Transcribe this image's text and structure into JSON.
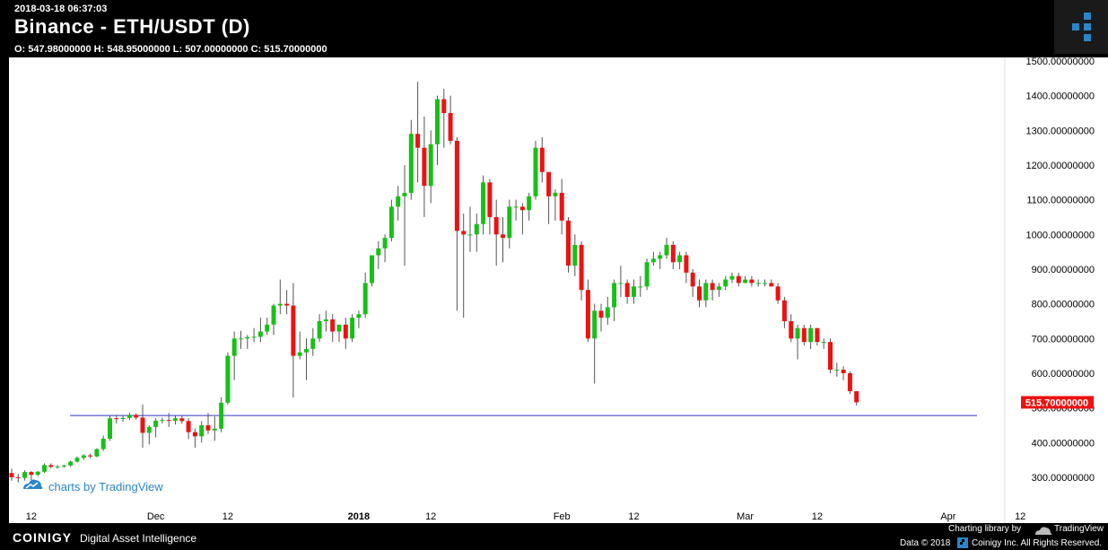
{
  "header": {
    "timestamp": "2018-03-18 06:37:03",
    "title": "Binance - ETH/USDT (D)",
    "ohlc": "O: 547.98000000 H: 548.95000000 L: 507.00000000 C: 515.70000000"
  },
  "colors": {
    "up": "#17c017",
    "down": "#ee1111",
    "hline": "#3333cc",
    "watermark": "#2a86c9"
  },
  "watermark": "charts by TradingView",
  "footer": {
    "brand": "COINIGY",
    "tagline": "Digital Asset Intelligence",
    "library_credit": "Charting library by",
    "library_name": "TradingView",
    "data_credit": "Data © 2018",
    "data_credit2": "Coinigy Inc. All Rights Reserved."
  },
  "chart_data": {
    "type": "candlestick",
    "price_axis": [
      "1500.00000000",
      "1400.00000000",
      "1300.00000000",
      "1200.00000000",
      "1100.00000000",
      "1000.00000000",
      "900.00000000",
      "800.00000000",
      "700.00000000",
      "600.00000000",
      "500.00000000",
      "400.00000000",
      "300.00000000"
    ],
    "time_axis": [
      {
        "label": "12",
        "date": "2017-11-12",
        "bold": false
      },
      {
        "label": "Dec",
        "date": "2017-12-01",
        "bold": false
      },
      {
        "label": "12",
        "date": "2017-12-12",
        "bold": false
      },
      {
        "label": "2018",
        "date": "2018-01-01",
        "bold": true
      },
      {
        "label": "12",
        "date": "2018-01-12",
        "bold": false
      },
      {
        "label": "Feb",
        "date": "2018-02-01",
        "bold": false
      },
      {
        "label": "12",
        "date": "2018-02-12",
        "bold": false
      },
      {
        "label": "Mar",
        "date": "2018-03-01",
        "bold": false
      },
      {
        "label": "12",
        "date": "2018-03-12",
        "bold": false
      },
      {
        "label": "Apr",
        "date": "2018-04-01",
        "bold": false
      },
      {
        "label": "12",
        "date": "2018-04-12",
        "bold": false
      }
    ],
    "last_price_label": "515.70000000",
    "horizontal_line": 478,
    "candles": [
      {
        "date": "2017-11-09",
        "o": 312,
        "h": 325,
        "l": 290,
        "c": 300
      },
      {
        "date": "2017-11-10",
        "o": 300,
        "h": 310,
        "l": 285,
        "c": 298
      },
      {
        "date": "2017-11-11",
        "o": 298,
        "h": 320,
        "l": 290,
        "c": 315
      },
      {
        "date": "2017-11-12",
        "o": 315,
        "h": 318,
        "l": 292,
        "c": 307
      },
      {
        "date": "2017-11-13",
        "o": 307,
        "h": 318,
        "l": 303,
        "c": 316
      },
      {
        "date": "2017-11-14",
        "o": 316,
        "h": 340,
        "l": 312,
        "c": 335
      },
      {
        "date": "2017-11-15",
        "o": 335,
        "h": 340,
        "l": 326,
        "c": 330
      },
      {
        "date": "2017-11-16",
        "o": 330,
        "h": 335,
        "l": 325,
        "c": 331
      },
      {
        "date": "2017-11-17",
        "o": 331,
        "h": 336,
        "l": 328,
        "c": 334
      },
      {
        "date": "2017-11-18",
        "o": 334,
        "h": 348,
        "l": 330,
        "c": 345
      },
      {
        "date": "2017-11-19",
        "o": 345,
        "h": 360,
        "l": 342,
        "c": 356
      },
      {
        "date": "2017-11-20",
        "o": 356,
        "h": 366,
        "l": 350,
        "c": 363
      },
      {
        "date": "2017-11-21",
        "o": 363,
        "h": 368,
        "l": 355,
        "c": 360
      },
      {
        "date": "2017-11-22",
        "o": 360,
        "h": 384,
        "l": 358,
        "c": 381
      },
      {
        "date": "2017-11-23",
        "o": 381,
        "h": 420,
        "l": 376,
        "c": 411
      },
      {
        "date": "2017-11-24",
        "o": 411,
        "h": 478,
        "l": 405,
        "c": 470
      },
      {
        "date": "2017-11-25",
        "o": 470,
        "h": 480,
        "l": 455,
        "c": 468
      },
      {
        "date": "2017-11-26",
        "o": 468,
        "h": 478,
        "l": 460,
        "c": 471
      },
      {
        "date": "2017-11-27",
        "o": 471,
        "h": 486,
        "l": 465,
        "c": 480
      },
      {
        "date": "2017-11-28",
        "o": 480,
        "h": 484,
        "l": 466,
        "c": 472
      },
      {
        "date": "2017-11-29",
        "o": 472,
        "h": 510,
        "l": 385,
        "c": 428
      },
      {
        "date": "2017-11-30",
        "o": 428,
        "h": 450,
        "l": 395,
        "c": 445
      },
      {
        "date": "2017-12-01",
        "o": 445,
        "h": 470,
        "l": 415,
        "c": 463
      },
      {
        "date": "2017-12-02",
        "o": 463,
        "h": 472,
        "l": 455,
        "c": 465
      },
      {
        "date": "2017-12-03",
        "o": 465,
        "h": 485,
        "l": 445,
        "c": 463
      },
      {
        "date": "2017-12-04",
        "o": 463,
        "h": 478,
        "l": 452,
        "c": 470
      },
      {
        "date": "2017-12-05",
        "o": 470,
        "h": 478,
        "l": 455,
        "c": 462
      },
      {
        "date": "2017-12-06",
        "o": 462,
        "h": 470,
        "l": 410,
        "c": 430
      },
      {
        "date": "2017-12-07",
        "o": 430,
        "h": 440,
        "l": 385,
        "c": 418
      },
      {
        "date": "2017-12-08",
        "o": 418,
        "h": 462,
        "l": 400,
        "c": 450
      },
      {
        "date": "2017-12-09",
        "o": 450,
        "h": 485,
        "l": 425,
        "c": 435
      },
      {
        "date": "2017-12-10",
        "o": 435,
        "h": 475,
        "l": 405,
        "c": 440
      },
      {
        "date": "2017-12-11",
        "o": 440,
        "h": 530,
        "l": 430,
        "c": 515
      },
      {
        "date": "2017-12-12",
        "o": 515,
        "h": 660,
        "l": 510,
        "c": 650
      },
      {
        "date": "2017-12-13",
        "o": 650,
        "h": 720,
        "l": 580,
        "c": 700
      },
      {
        "date": "2017-12-14",
        "o": 700,
        "h": 722,
        "l": 670,
        "c": 700
      },
      {
        "date": "2017-12-15",
        "o": 700,
        "h": 710,
        "l": 670,
        "c": 704
      },
      {
        "date": "2017-12-16",
        "o": 704,
        "h": 730,
        "l": 690,
        "c": 705
      },
      {
        "date": "2017-12-17",
        "o": 705,
        "h": 760,
        "l": 690,
        "c": 720
      },
      {
        "date": "2017-12-18",
        "o": 720,
        "h": 760,
        "l": 710,
        "c": 740
      },
      {
        "date": "2017-12-19",
        "o": 740,
        "h": 800,
        "l": 710,
        "c": 795
      },
      {
        "date": "2017-12-20",
        "o": 795,
        "h": 870,
        "l": 770,
        "c": 800
      },
      {
        "date": "2017-12-21",
        "o": 800,
        "h": 840,
        "l": 770,
        "c": 795
      },
      {
        "date": "2017-12-22",
        "o": 795,
        "h": 860,
        "l": 530,
        "c": 650
      },
      {
        "date": "2017-12-23",
        "o": 650,
        "h": 720,
        "l": 640,
        "c": 660
      },
      {
        "date": "2017-12-24",
        "o": 660,
        "h": 700,
        "l": 580,
        "c": 670
      },
      {
        "date": "2017-12-25",
        "o": 670,
        "h": 730,
        "l": 650,
        "c": 700
      },
      {
        "date": "2017-12-26",
        "o": 700,
        "h": 770,
        "l": 690,
        "c": 750
      },
      {
        "date": "2017-12-27",
        "o": 750,
        "h": 780,
        "l": 720,
        "c": 755
      },
      {
        "date": "2017-12-28",
        "o": 755,
        "h": 770,
        "l": 690,
        "c": 720
      },
      {
        "date": "2017-12-29",
        "o": 720,
        "h": 740,
        "l": 690,
        "c": 740
      },
      {
        "date": "2017-12-30",
        "o": 740,
        "h": 760,
        "l": 670,
        "c": 700
      },
      {
        "date": "2017-12-31",
        "o": 700,
        "h": 770,
        "l": 690,
        "c": 760
      },
      {
        "date": "2018-01-01",
        "o": 760,
        "h": 780,
        "l": 730,
        "c": 770
      },
      {
        "date": "2018-01-02",
        "o": 770,
        "h": 890,
        "l": 760,
        "c": 860
      },
      {
        "date": "2018-01-03",
        "o": 860,
        "h": 940,
        "l": 850,
        "c": 940
      },
      {
        "date": "2018-01-04",
        "o": 940,
        "h": 980,
        "l": 900,
        "c": 960
      },
      {
        "date": "2018-01-05",
        "o": 960,
        "h": 1000,
        "l": 920,
        "c": 990
      },
      {
        "date": "2018-01-06",
        "o": 990,
        "h": 1100,
        "l": 980,
        "c": 1080
      },
      {
        "date": "2018-01-07",
        "o": 1080,
        "h": 1140,
        "l": 1040,
        "c": 1110
      },
      {
        "date": "2018-01-08",
        "o": 1110,
        "h": 1200,
        "l": 910,
        "c": 1120
      },
      {
        "date": "2018-01-09",
        "o": 1120,
        "h": 1330,
        "l": 1100,
        "c": 1290
      },
      {
        "date": "2018-01-10",
        "o": 1290,
        "h": 1440,
        "l": 1150,
        "c": 1250
      },
      {
        "date": "2018-01-11",
        "o": 1250,
        "h": 1340,
        "l": 1050,
        "c": 1140
      },
      {
        "date": "2018-01-12",
        "o": 1140,
        "h": 1300,
        "l": 1090,
        "c": 1260
      },
      {
        "date": "2018-01-13",
        "o": 1260,
        "h": 1400,
        "l": 1200,
        "c": 1390
      },
      {
        "date": "2018-01-14",
        "o": 1390,
        "h": 1420,
        "l": 1250,
        "c": 1350
      },
      {
        "date": "2018-01-15",
        "o": 1350,
        "h": 1400,
        "l": 1260,
        "c": 1270
      },
      {
        "date": "2018-01-16",
        "o": 1270,
        "h": 1280,
        "l": 780,
        "c": 1010
      },
      {
        "date": "2018-01-17",
        "o": 1010,
        "h": 1060,
        "l": 760,
        "c": 1000
      },
      {
        "date": "2018-01-18",
        "o": 1000,
        "h": 1080,
        "l": 950,
        "c": 1000
      },
      {
        "date": "2018-01-19",
        "o": 1000,
        "h": 1060,
        "l": 950,
        "c": 1030
      },
      {
        "date": "2018-01-20",
        "o": 1030,
        "h": 1170,
        "l": 1000,
        "c": 1150
      },
      {
        "date": "2018-01-21",
        "o": 1150,
        "h": 1160,
        "l": 1000,
        "c": 1050
      },
      {
        "date": "2018-01-22",
        "o": 1050,
        "h": 1100,
        "l": 910,
        "c": 1000
      },
      {
        "date": "2018-01-23",
        "o": 1000,
        "h": 1050,
        "l": 920,
        "c": 990
      },
      {
        "date": "2018-01-24",
        "o": 990,
        "h": 1100,
        "l": 960,
        "c": 1080
      },
      {
        "date": "2018-01-25",
        "o": 1080,
        "h": 1100,
        "l": 1040,
        "c": 1080
      },
      {
        "date": "2018-01-26",
        "o": 1080,
        "h": 1090,
        "l": 1000,
        "c": 1070
      },
      {
        "date": "2018-01-27",
        "o": 1070,
        "h": 1120,
        "l": 1040,
        "c": 1110
      },
      {
        "date": "2018-01-28",
        "o": 1110,
        "h": 1270,
        "l": 1100,
        "c": 1250
      },
      {
        "date": "2018-01-29",
        "o": 1250,
        "h": 1280,
        "l": 1150,
        "c": 1180
      },
      {
        "date": "2018-01-30",
        "o": 1180,
        "h": 1180,
        "l": 1030,
        "c": 1110
      },
      {
        "date": "2018-01-31",
        "o": 1110,
        "h": 1130,
        "l": 1040,
        "c": 1120
      },
      {
        "date": "2018-02-01",
        "o": 1120,
        "h": 1160,
        "l": 1000,
        "c": 1040
      },
      {
        "date": "2018-02-02",
        "o": 1040,
        "h": 1050,
        "l": 890,
        "c": 910
      },
      {
        "date": "2018-02-03",
        "o": 910,
        "h": 1000,
        "l": 880,
        "c": 970
      },
      {
        "date": "2018-02-04",
        "o": 970,
        "h": 980,
        "l": 810,
        "c": 840
      },
      {
        "date": "2018-02-05",
        "o": 840,
        "h": 870,
        "l": 690,
        "c": 700
      },
      {
        "date": "2018-02-06",
        "o": 700,
        "h": 800,
        "l": 570,
        "c": 780
      },
      {
        "date": "2018-02-07",
        "o": 780,
        "h": 800,
        "l": 720,
        "c": 760
      },
      {
        "date": "2018-02-08",
        "o": 760,
        "h": 820,
        "l": 740,
        "c": 790
      },
      {
        "date": "2018-02-09",
        "o": 790,
        "h": 870,
        "l": 750,
        "c": 860
      },
      {
        "date": "2018-02-10",
        "o": 860,
        "h": 910,
        "l": 820,
        "c": 860
      },
      {
        "date": "2018-02-11",
        "o": 860,
        "h": 870,
        "l": 800,
        "c": 820
      },
      {
        "date": "2018-02-12",
        "o": 820,
        "h": 870,
        "l": 800,
        "c": 850
      },
      {
        "date": "2018-02-13",
        "o": 850,
        "h": 880,
        "l": 820,
        "c": 850
      },
      {
        "date": "2018-02-14",
        "o": 850,
        "h": 930,
        "l": 840,
        "c": 920
      },
      {
        "date": "2018-02-15",
        "o": 920,
        "h": 950,
        "l": 910,
        "c": 930
      },
      {
        "date": "2018-02-16",
        "o": 930,
        "h": 950,
        "l": 900,
        "c": 940
      },
      {
        "date": "2018-02-17",
        "o": 940,
        "h": 990,
        "l": 930,
        "c": 970
      },
      {
        "date": "2018-02-18",
        "o": 970,
        "h": 980,
        "l": 900,
        "c": 920
      },
      {
        "date": "2018-02-19",
        "o": 920,
        "h": 950,
        "l": 900,
        "c": 940
      },
      {
        "date": "2018-02-20",
        "o": 940,
        "h": 950,
        "l": 860,
        "c": 890
      },
      {
        "date": "2018-02-21",
        "o": 890,
        "h": 900,
        "l": 820,
        "c": 850
      },
      {
        "date": "2018-02-22",
        "o": 850,
        "h": 870,
        "l": 790,
        "c": 810
      },
      {
        "date": "2018-02-23",
        "o": 810,
        "h": 870,
        "l": 790,
        "c": 860
      },
      {
        "date": "2018-02-24",
        "o": 860,
        "h": 870,
        "l": 810,
        "c": 840
      },
      {
        "date": "2018-02-25",
        "o": 840,
        "h": 860,
        "l": 820,
        "c": 850
      },
      {
        "date": "2018-02-26",
        "o": 850,
        "h": 880,
        "l": 840,
        "c": 870
      },
      {
        "date": "2018-02-27",
        "o": 870,
        "h": 890,
        "l": 860,
        "c": 880
      },
      {
        "date": "2018-02-28",
        "o": 880,
        "h": 890,
        "l": 850,
        "c": 860
      },
      {
        "date": "2018-03-01",
        "o": 860,
        "h": 880,
        "l": 860,
        "c": 870
      },
      {
        "date": "2018-03-02",
        "o": 870,
        "h": 880,
        "l": 850,
        "c": 860
      },
      {
        "date": "2018-03-03",
        "o": 860,
        "h": 870,
        "l": 850,
        "c": 860
      },
      {
        "date": "2018-03-04",
        "o": 860,
        "h": 870,
        "l": 850,
        "c": 860
      },
      {
        "date": "2018-03-05",
        "o": 860,
        "h": 870,
        "l": 850,
        "c": 850
      },
      {
        "date": "2018-03-06",
        "o": 850,
        "h": 860,
        "l": 800,
        "c": 810
      },
      {
        "date": "2018-03-07",
        "o": 810,
        "h": 820,
        "l": 730,
        "c": 750
      },
      {
        "date": "2018-03-08",
        "o": 750,
        "h": 770,
        "l": 690,
        "c": 700
      },
      {
        "date": "2018-03-09",
        "o": 700,
        "h": 740,
        "l": 640,
        "c": 730
      },
      {
        "date": "2018-03-10",
        "o": 730,
        "h": 740,
        "l": 680,
        "c": 690
      },
      {
        "date": "2018-03-11",
        "o": 690,
        "h": 740,
        "l": 670,
        "c": 730
      },
      {
        "date": "2018-03-12",
        "o": 730,
        "h": 730,
        "l": 680,
        "c": 690
      },
      {
        "date": "2018-03-13",
        "o": 690,
        "h": 700,
        "l": 670,
        "c": 690
      },
      {
        "date": "2018-03-14",
        "o": 690,
        "h": 700,
        "l": 600,
        "c": 610
      },
      {
        "date": "2018-03-15",
        "o": 610,
        "h": 630,
        "l": 590,
        "c": 610
      },
      {
        "date": "2018-03-16",
        "o": 610,
        "h": 620,
        "l": 580,
        "c": 600
      },
      {
        "date": "2018-03-17",
        "o": 600,
        "h": 605,
        "l": 540,
        "c": 548
      },
      {
        "date": "2018-03-18",
        "o": 548,
        "h": 549,
        "l": 507,
        "c": 516
      }
    ]
  }
}
